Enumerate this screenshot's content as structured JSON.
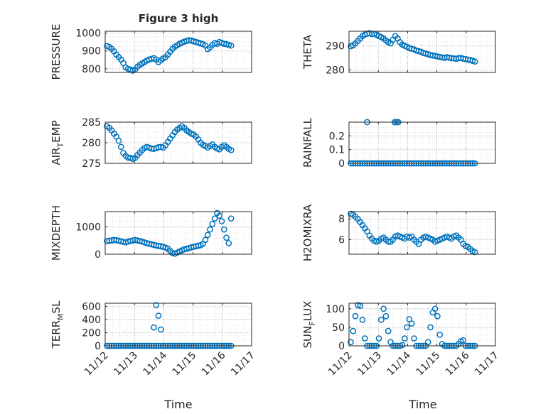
{
  "figure": {
    "title": "Figure 3 high",
    "xlabel": "Time",
    "marker_color": "#0072bd",
    "grid": true,
    "grid_style": "dotted"
  },
  "chart_data": [
    {
      "type": "scatter",
      "ylabel": "PRESSURE",
      "yticks": [
        800,
        900,
        1000
      ],
      "ylim": [
        780,
        1010
      ],
      "xlim": [
        0,
        5
      ],
      "x": [
        0.06,
        0.14,
        0.22,
        0.3,
        0.38,
        0.46,
        0.54,
        0.62,
        0.7,
        0.78,
        0.86,
        0.94,
        1.02,
        1.1,
        1.18,
        1.26,
        1.34,
        1.42,
        1.5,
        1.58,
        1.66,
        1.74,
        1.82,
        1.9,
        1.98,
        2.06,
        2.14,
        2.22,
        2.3,
        2.38,
        2.46,
        2.54,
        2.62,
        2.7,
        2.78,
        2.86,
        2.94,
        3.02,
        3.1,
        3.18,
        3.26,
        3.34,
        3.42,
        3.5,
        3.58,
        3.66,
        3.74,
        3.82,
        3.9,
        3.98,
        4.06,
        4.14,
        4.22,
        4.3
      ],
      "y": [
        928,
        922,
        912,
        898,
        880,
        866,
        852,
        832,
        808,
        800,
        796,
        790,
        796,
        812,
        822,
        830,
        838,
        846,
        852,
        856,
        860,
        852,
        838,
        848,
        858,
        866,
        880,
        896,
        912,
        924,
        932,
        940,
        946,
        952,
        956,
        960,
        958,
        954,
        950,
        946,
        942,
        938,
        930,
        910,
        920,
        934,
        944,
        940,
        950,
        945,
        940,
        938,
        934,
        930
      ]
    },
    {
      "type": "scatter",
      "ylabel": "THETA",
      "yticks": [
        280,
        290
      ],
      "ylim": [
        279,
        296
      ],
      "xlim": [
        0,
        5
      ],
      "x": [
        0.06,
        0.14,
        0.22,
        0.3,
        0.38,
        0.46,
        0.54,
        0.62,
        0.7,
        0.78,
        0.86,
        0.94,
        1.02,
        1.1,
        1.18,
        1.26,
        1.34,
        1.42,
        1.5,
        1.58,
        1.66,
        1.74,
        1.82,
        1.9,
        1.98,
        2.06,
        2.14,
        2.22,
        2.3,
        2.38,
        2.46,
        2.54,
        2.62,
        2.7,
        2.78,
        2.86,
        2.94,
        3.02,
        3.1,
        3.18,
        3.26,
        3.34,
        3.42,
        3.5,
        3.58,
        3.66,
        3.74,
        3.82,
        3.9,
        3.98,
        4.06,
        4.14,
        4.22,
        4.3
      ],
      "y": [
        289.8,
        290.2,
        291,
        292,
        293,
        294,
        294.6,
        295,
        295.2,
        294.8,
        295,
        294.5,
        294,
        293.6,
        293,
        292.2,
        291.5,
        291,
        292.5,
        294,
        293,
        291.5,
        290.5,
        290,
        289.6,
        289,
        288.8,
        288.5,
        288,
        287.8,
        287.5,
        287,
        286.8,
        286.5,
        286.2,
        286,
        285.8,
        285.6,
        285.4,
        285.2,
        285,
        285.3,
        285.1,
        284.9,
        284.8,
        284.6,
        284.9,
        285,
        284.7,
        284.5,
        284.3,
        284.1,
        283.8,
        283.5
      ]
    },
    {
      "type": "scatter",
      "ylabel": "AIR_TEMP",
      "yticks": [
        275,
        280,
        285
      ],
      "ylim": [
        275,
        285
      ],
      "xlim": [
        0,
        5
      ],
      "x": [
        0.06,
        0.14,
        0.22,
        0.3,
        0.38,
        0.46,
        0.54,
        0.62,
        0.7,
        0.78,
        0.86,
        0.94,
        1.02,
        1.1,
        1.18,
        1.26,
        1.34,
        1.42,
        1.5,
        1.58,
        1.66,
        1.74,
        1.82,
        1.9,
        1.98,
        2.06,
        2.14,
        2.22,
        2.3,
        2.38,
        2.46,
        2.54,
        2.62,
        2.7,
        2.78,
        2.86,
        2.94,
        3.02,
        3.1,
        3.18,
        3.26,
        3.34,
        3.42,
        3.5,
        3.58,
        3.66,
        3.74,
        3.82,
        3.9,
        3.98,
        4.06,
        4.14,
        4.22,
        4.3
      ],
      "y": [
        284,
        283.6,
        283,
        282.2,
        281.5,
        280.5,
        279,
        277.5,
        276.8,
        276.4,
        276.3,
        276.1,
        276.3,
        277,
        277.6,
        278.2,
        278.7,
        279,
        278.8,
        278.6,
        278.5,
        278.7,
        278.9,
        279,
        278.8,
        279.4,
        280.2,
        281,
        281.8,
        282.6,
        283.2,
        283.6,
        284,
        283.6,
        283,
        282.6,
        282.2,
        282,
        281.5,
        280.8,
        280,
        279.5,
        279.2,
        278.8,
        279.2,
        279.6,
        279,
        278.6,
        278.4,
        279,
        279.4,
        279,
        278.5,
        278.2
      ]
    },
    {
      "type": "scatter",
      "ylabel": "RAINFALL",
      "yticks": [
        0,
        0.1,
        0.2
      ],
      "ylim": [
        0,
        0.3
      ],
      "xlim": [
        0,
        5
      ],
      "x": [
        0.06,
        0.14,
        0.22,
        0.3,
        0.38,
        0.46,
        0.54,
        0.62,
        0.7,
        0.78,
        0.86,
        0.94,
        1.02,
        1.1,
        1.18,
        1.26,
        1.34,
        1.42,
        1.5,
        1.58,
        1.66,
        1.74,
        1.82,
        1.9,
        1.98,
        2.06,
        2.14,
        2.22,
        2.3,
        2.38,
        2.46,
        2.54,
        2.62,
        2.7,
        2.78,
        2.86,
        2.94,
        3.02,
        3.1,
        3.18,
        3.26,
        3.34,
        3.42,
        3.5,
        3.58,
        3.66,
        3.74,
        3.82,
        3.9,
        3.98,
        4.06,
        4.14,
        4.22,
        4.3,
        0.62,
        1.56,
        1.62,
        1.68
      ],
      "y": [
        0,
        0,
        0,
        0,
        0,
        0,
        0,
        0,
        0,
        0,
        0,
        0,
        0,
        0,
        0,
        0,
        0,
        0,
        0,
        0,
        0,
        0,
        0,
        0,
        0,
        0,
        0,
        0,
        0,
        0,
        0,
        0,
        0,
        0,
        0,
        0,
        0,
        0,
        0,
        0,
        0,
        0,
        0,
        0,
        0,
        0,
        0,
        0,
        0,
        0,
        0,
        0,
        0,
        0,
        0.3,
        0.3,
        0.3,
        0.3
      ]
    },
    {
      "type": "scatter",
      "ylabel": "MIXDEPTH",
      "yticks": [
        0,
        1000
      ],
      "ylim": [
        0,
        1550
      ],
      "xlim": [
        0,
        5
      ],
      "x": [
        0.06,
        0.14,
        0.22,
        0.3,
        0.38,
        0.46,
        0.54,
        0.62,
        0.7,
        0.78,
        0.86,
        0.94,
        1.02,
        1.1,
        1.18,
        1.26,
        1.34,
        1.42,
        1.5,
        1.58,
        1.66,
        1.74,
        1.82,
        1.9,
        1.98,
        2.06,
        2.14,
        2.22,
        2.3,
        2.38,
        2.46,
        2.54,
        2.62,
        2.7,
        2.78,
        2.86,
        2.94,
        3.02,
        3.1,
        3.18,
        3.26,
        3.34,
        3.42,
        3.5,
        3.58,
        3.66,
        3.74,
        3.82,
        3.9,
        3.98,
        4.06,
        4.14,
        4.22,
        4.3
      ],
      "y": [
        480,
        490,
        500,
        520,
        510,
        490,
        470,
        450,
        430,
        460,
        480,
        500,
        520,
        500,
        480,
        460,
        430,
        400,
        380,
        360,
        340,
        320,
        300,
        290,
        270,
        240,
        200,
        120,
        40,
        20,
        60,
        100,
        140,
        180,
        200,
        220,
        250,
        270,
        290,
        310,
        330,
        380,
        520,
        700,
        900,
        1100,
        1300,
        1500,
        1400,
        1200,
        900,
        600,
        400,
        1300
      ]
    },
    {
      "type": "scatter",
      "ylabel": "H2OMIXRA",
      "yticks": [
        6,
        8
      ],
      "ylim": [
        4.6,
        8.7
      ],
      "xlim": [
        0,
        5
      ],
      "x": [
        0.06,
        0.14,
        0.22,
        0.3,
        0.38,
        0.46,
        0.54,
        0.62,
        0.7,
        0.78,
        0.86,
        0.94,
        1.02,
        1.1,
        1.18,
        1.26,
        1.34,
        1.42,
        1.5,
        1.58,
        1.66,
        1.74,
        1.82,
        1.9,
        1.98,
        2.06,
        2.14,
        2.22,
        2.3,
        2.38,
        2.46,
        2.54,
        2.62,
        2.7,
        2.78,
        2.86,
        2.94,
        3.02,
        3.1,
        3.18,
        3.26,
        3.34,
        3.42,
        3.5,
        3.58,
        3.66,
        3.74,
        3.82,
        3.9,
        3.98,
        4.06,
        4.14,
        4.22,
        4.3
      ],
      "y": [
        8.5,
        8.4,
        8.2,
        8,
        7.7,
        7.4,
        7.1,
        6.8,
        6.4,
        6.1,
        5.9,
        5.8,
        5.9,
        6.1,
        6.2,
        6,
        5.8,
        5.8,
        6,
        6.3,
        6.4,
        6.3,
        6.2,
        6.1,
        6.3,
        6.2,
        6.3,
        6,
        5.8,
        5.6,
        6,
        6.2,
        6.3,
        6.2,
        6.1,
        6,
        5.8,
        5.9,
        6,
        6.1,
        6.2,
        6.3,
        6.2,
        6.1,
        6.3,
        6.4,
        6.2,
        6,
        5.6,
        5.4,
        5.3,
        5.1,
        4.9,
        4.8
      ]
    },
    {
      "type": "scatter",
      "ylabel": "TERR_MSL",
      "yticks": [
        0,
        200,
        400,
        600
      ],
      "ylim": [
        0,
        650
      ],
      "xlim": [
        0,
        5
      ],
      "x": [
        0.06,
        0.14,
        0.22,
        0.3,
        0.38,
        0.46,
        0.54,
        0.62,
        0.7,
        0.78,
        0.86,
        0.94,
        1.02,
        1.1,
        1.18,
        1.26,
        1.34,
        1.42,
        1.5,
        1.58,
        1.66,
        1.74,
        1.82,
        1.9,
        1.98,
        2.06,
        2.14,
        2.22,
        2.3,
        2.38,
        2.46,
        2.54,
        2.62,
        2.7,
        2.78,
        2.86,
        2.94,
        3.02,
        3.1,
        3.18,
        3.26,
        3.34,
        3.42,
        3.5,
        3.58,
        3.66,
        3.74,
        3.82,
        3.9,
        3.98,
        4.06,
        4.14,
        4.22,
        4.3,
        1.66,
        1.74,
        1.82,
        1.9
      ],
      "y": [
        0,
        0,
        0,
        0,
        0,
        0,
        0,
        0,
        0,
        0,
        0,
        0,
        0,
        0,
        0,
        0,
        0,
        0,
        0,
        0,
        0,
        0,
        0,
        0,
        0,
        0,
        0,
        0,
        0,
        0,
        0,
        0,
        0,
        0,
        0,
        0,
        0,
        0,
        0,
        0,
        0,
        0,
        0,
        0,
        0,
        0,
        0,
        0,
        0,
        0,
        0,
        0,
        0,
        0,
        280,
        620,
        460,
        250
      ]
    },
    {
      "type": "scatter",
      "ylabel": "SUN_FLUX",
      "yticks": [
        0,
        50,
        100
      ],
      "ylim": [
        0,
        115
      ],
      "xlim": [
        0,
        5
      ],
      "x": [
        0.06,
        0.14,
        0.22,
        0.3,
        0.38,
        0.46,
        0.54,
        0.62,
        0.7,
        0.78,
        0.86,
        0.94,
        1.02,
        1.1,
        1.18,
        1.26,
        1.34,
        1.42,
        1.5,
        1.58,
        1.66,
        1.74,
        1.82,
        1.9,
        1.98,
        2.06,
        2.14,
        2.22,
        2.3,
        2.38,
        2.46,
        2.54,
        2.62,
        2.7,
        2.78,
        2.86,
        2.94,
        3.02,
        3.1,
        3.18,
        3.26,
        3.34,
        3.42,
        3.5,
        3.58,
        3.66,
        3.74,
        3.82,
        3.9,
        3.98,
        4.06,
        4.14,
        4.22,
        4.3
      ],
      "y": [
        10,
        40,
        80,
        110,
        108,
        70,
        20,
        0,
        0,
        0,
        0,
        0,
        20,
        70,
        100,
        80,
        40,
        10,
        0,
        0,
        0,
        0,
        2,
        20,
        50,
        72,
        60,
        20,
        0,
        0,
        0,
        0,
        0,
        10,
        50,
        90,
        100,
        80,
        30,
        5,
        0,
        0,
        0,
        0,
        0,
        0,
        5,
        12,
        15,
        0,
        0,
        0,
        0,
        0
      ]
    }
  ],
  "panels": [
    {
      "ylabel": "PRESSURE",
      "ylabel_sub": "",
      "ylabel_tail": "",
      "yticks": [
        "800",
        "900",
        "1000"
      ]
    },
    {
      "ylabel": "THETA",
      "ylabel_sub": "",
      "ylabel_tail": "",
      "yticks": [
        "280",
        "290"
      ]
    },
    {
      "ylabel": "AIR",
      "ylabel_sub": "T",
      "ylabel_tail": "EMP",
      "yticks": [
        "275",
        "280",
        "285"
      ]
    },
    {
      "ylabel": "RAINFALL",
      "ylabel_sub": "",
      "ylabel_tail": "",
      "yticks": [
        "0",
        "0.1",
        "0.2"
      ]
    },
    {
      "ylabel": "MIXDEPTH",
      "ylabel_sub": "",
      "ylabel_tail": "",
      "yticks": [
        "0",
        "1000"
      ]
    },
    {
      "ylabel": "H2OMIXRA",
      "ylabel_sub": "",
      "ylabel_tail": "",
      "yticks": [
        "6",
        "8"
      ]
    },
    {
      "ylabel": "TERR",
      "ylabel_sub": "M",
      "ylabel_tail": "SL",
      "yticks": [
        "0",
        "200",
        "400",
        "600"
      ]
    },
    {
      "ylabel": "SUN",
      "ylabel_sub": "F",
      "ylabel_tail": "LUX",
      "yticks": [
        "0",
        "50",
        "100"
      ]
    }
  ],
  "xticks": [
    "11/12",
    "11/13",
    "11/14",
    "11/15",
    "11/16",
    "11/17"
  ]
}
